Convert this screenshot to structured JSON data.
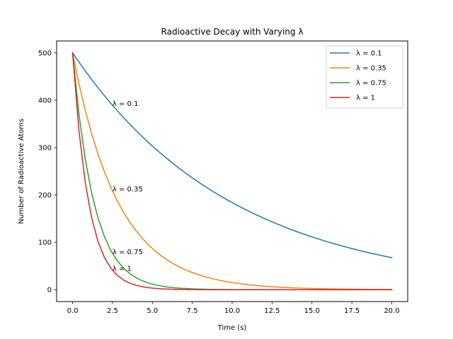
{
  "chart_data": {
    "type": "line",
    "title": "Radioactive Decay with Varying λ",
    "xlabel": "Time (s)",
    "ylabel": "Number of Radioactive Atoms",
    "xlim": [
      -1.0,
      21.0
    ],
    "ylim": [
      -25,
      525
    ],
    "xticks": [
      0.0,
      2.5,
      5.0,
      7.5,
      10.0,
      12.5,
      15.0,
      17.5,
      20.0
    ],
    "xtick_labels": [
      "0.0",
      "2.5",
      "5.0",
      "7.5",
      "10.0",
      "12.5",
      "15.0",
      "17.5",
      "20.0"
    ],
    "yticks": [
      0,
      100,
      200,
      300,
      400,
      500
    ],
    "ytick_labels": [
      "0",
      "100",
      "200",
      "300",
      "400",
      "500"
    ],
    "grid": false,
    "legend_position": "top-right",
    "initial_atoms": 500,
    "x": [
      0.0,
      0.4,
      0.8,
      1.2,
      1.6,
      2.0,
      2.4,
      2.8,
      3.2,
      3.6,
      4.0,
      4.4,
      4.8,
      5.2,
      5.6,
      6.0,
      6.4,
      6.8,
      7.2,
      7.6,
      8.0,
      8.4,
      8.8,
      9.2,
      9.6,
      10.0,
      10.4,
      10.8,
      11.2,
      11.6,
      12.0,
      12.4,
      12.8,
      13.2,
      13.6,
      14.0,
      14.4,
      14.8,
      15.2,
      15.6,
      16.0,
      16.4,
      16.8,
      17.2,
      17.6,
      18.0,
      18.4,
      18.8,
      19.2,
      19.6,
      20.0
    ],
    "series": [
      {
        "name": "λ = 0.1",
        "lambda": 0.1,
        "color": "#1f77b4",
        "values": [
          500.0,
          480.4,
          461.6,
          443.5,
          426.1,
          409.4,
          393.3,
          377.9,
          363.1,
          348.8,
          335.2,
          322.0,
          309.4,
          297.3,
          285.6,
          274.4,
          263.6,
          253.3,
          243.4,
          233.8,
          224.7,
          215.8,
          207.4,
          199.2,
          191.4,
          183.9,
          176.7,
          169.8,
          163.1,
          156.7,
          150.6,
          144.7,
          139.0,
          133.6,
          128.3,
          123.3,
          118.5,
          113.8,
          109.4,
          105.1,
          100.9,
          97.0,
          93.2,
          89.5,
          86.0,
          82.6,
          79.4,
          76.3,
          73.3,
          70.4,
          67.7
        ]
      },
      {
        "name": "λ = 0.35",
        "lambda": 0.35,
        "color": "#ff7f0e",
        "values": [
          500.0,
          434.7,
          377.9,
          328.5,
          285.6,
          248.3,
          215.8,
          187.6,
          163.1,
          141.8,
          123.3,
          107.2,
          93.2,
          81.0,
          70.4,
          61.2,
          53.2,
          46.3,
          40.2,
          35.0,
          30.4,
          26.4,
          23.0,
          20.0,
          17.4,
          15.1,
          13.1,
          11.4,
          9.9,
          8.6,
          7.5,
          6.5,
          5.7,
          4.9,
          4.3,
          3.7,
          3.2,
          2.8,
          2.4,
          2.1,
          1.8,
          1.6,
          1.4,
          1.2,
          1.1,
          0.9,
          0.8,
          0.7,
          0.6,
          0.5,
          0.5
        ]
      },
      {
        "name": "λ = 0.75",
        "lambda": 0.75,
        "color": "#2ca02c",
        "values": [
          500.0,
          370.4,
          274.4,
          203.3,
          150.6,
          111.6,
          82.6,
          61.2,
          45.4,
          33.6,
          24.9,
          18.4,
          13.7,
          10.1,
          7.5,
          5.6,
          4.1,
          3.0,
          2.3,
          1.7,
          1.2,
          0.9,
          0.7,
          0.5,
          0.4,
          0.3,
          0.2,
          0.2,
          0.1,
          0.1,
          0.1,
          0.0,
          0.0,
          0.0,
          0.0,
          0.0,
          0.0,
          0.0,
          0.0,
          0.0,
          0.0,
          0.0,
          0.0,
          0.0,
          0.0,
          0.0,
          0.0,
          0.0,
          0.0,
          0.0,
          0.0
        ]
      },
      {
        "name": "λ = 1",
        "lambda": 1,
        "color": "#d62728",
        "values": [
          500.0,
          335.2,
          224.7,
          150.6,
          100.9,
          67.7,
          45.4,
          30.4,
          20.4,
          13.7,
          9.2,
          6.1,
          4.1,
          2.8,
          1.8,
          1.2,
          0.8,
          0.6,
          0.4,
          0.3,
          0.2,
          0.1,
          0.1,
          0.1,
          0.0,
          0.0,
          0.0,
          0.0,
          0.0,
          0.0,
          0.0,
          0.0,
          0.0,
          0.0,
          0.0,
          0.0,
          0.0,
          0.0,
          0.0,
          0.0,
          0.0,
          0.0,
          0.0,
          0.0,
          0.0,
          0.0,
          0.0,
          0.0,
          0.0,
          0.0,
          0.0
        ]
      }
    ],
    "annotations": [
      {
        "text": "λ = 0.1",
        "x": 2.5,
        "y": 393.3
      },
      {
        "text": "λ = 0.35",
        "x": 2.5,
        "y": 212.7
      },
      {
        "text": "λ = 0.75",
        "x": 2.5,
        "y": 80.3
      },
      {
        "text": "λ = 1",
        "x": 2.5,
        "y": 44.9
      }
    ]
  }
}
